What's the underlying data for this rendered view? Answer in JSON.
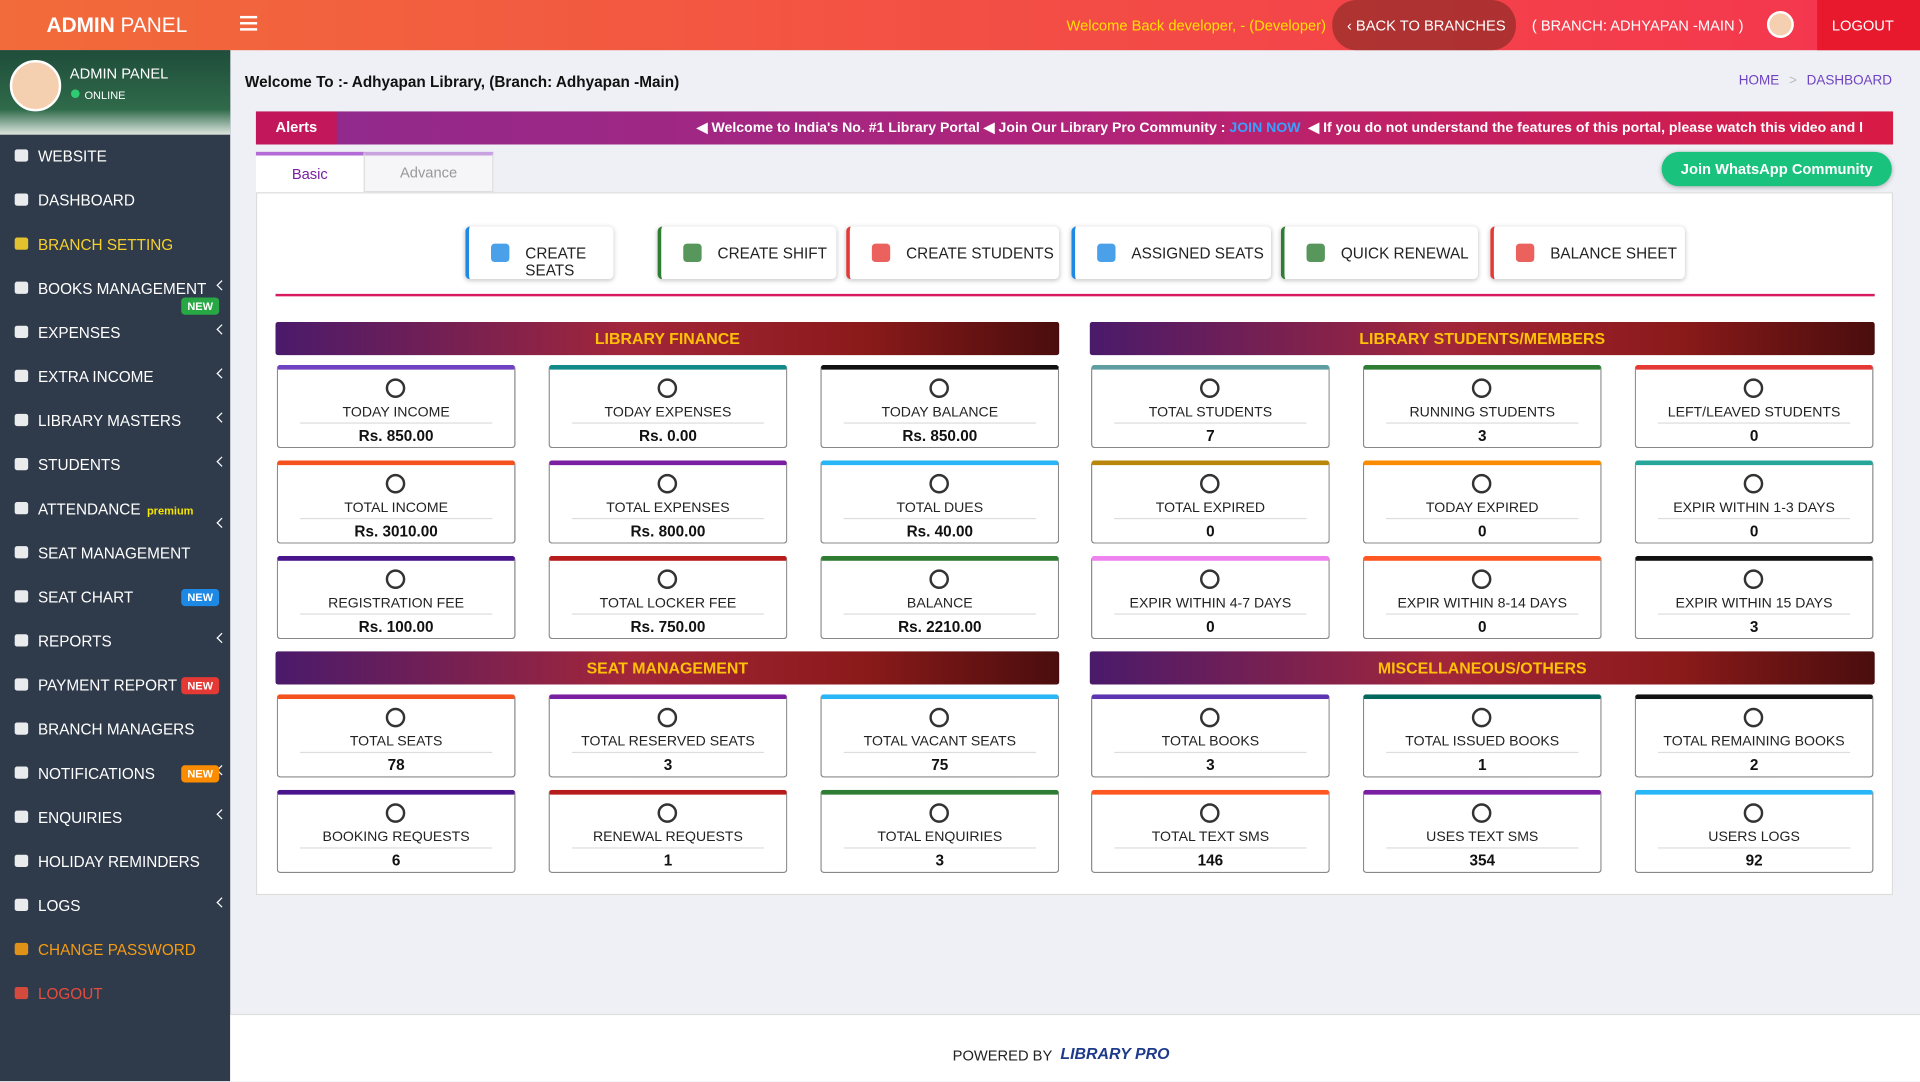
{
  "header": {
    "brand_bold": "ADMIN",
    "brand_light": "PANEL",
    "welcome": "Welcome Back developer, - (Developer)",
    "back": "BACK TO BRANCHES",
    "branch": "( BRANCH: ADHYAPAN -MAIN )",
    "logout": "LOGOUT"
  },
  "sidebar": {
    "user": "ADMIN PANEL",
    "status": "ONLINE",
    "menu": [
      {
        "label": "WEBSITE"
      },
      {
        "label": "DASHBOARD"
      },
      {
        "label": "BRANCH SETTING",
        "color": "#f7d02c"
      },
      {
        "label": "BOOKS MANAGEMENT",
        "arrow": true,
        "badge": "NEW",
        "badge_color": "#28a745",
        "badge_below": true
      },
      {
        "label": "EXPENSES",
        "arrow": true
      },
      {
        "label": "EXTRA INCOME",
        "arrow": true
      },
      {
        "label": "LIBRARY MASTERS",
        "arrow": true
      },
      {
        "label": "STUDENTS",
        "arrow": true
      },
      {
        "label": "ATTENDANCE",
        "arrow": true,
        "badge": "premium",
        "badge_color": "none"
      },
      {
        "label": "SEAT MANAGEMENT"
      },
      {
        "label": "SEAT CHART",
        "badge": "NEW",
        "badge_color": "#1e88e5"
      },
      {
        "label": "REPORTS",
        "arrow": true
      },
      {
        "label": "PAYMENT REPORT",
        "badge": "NEW",
        "badge_color": "#e53935"
      },
      {
        "label": "BRANCH MANAGERS"
      },
      {
        "label": "NOTIFICATIONS",
        "arrow": true,
        "badge": "NEW",
        "badge_color": "#fb8c00"
      },
      {
        "label": "ENQUIRIES",
        "arrow": true
      },
      {
        "label": "HOLIDAY REMINDERS"
      },
      {
        "label": "LOGS",
        "arrow": true
      },
      {
        "label": "CHANGE PASSWORD",
        "color": "#f39c12"
      },
      {
        "label": "LOGOUT",
        "color": "#e74c3c"
      }
    ]
  },
  "page": {
    "welcome": "Welcome To :- Adhyapan Library, (Branch: Adhyapan -Main)",
    "breadcrumb": [
      "HOME",
      "DASHBOARD"
    ]
  },
  "alerts": {
    "label": "Alerts",
    "items": [
      "Welcome to India's No. #1 Library Portal",
      "Join Our Library Pro Community :",
      "If you do not understand the features of this portal, please watch this video and l"
    ],
    "link": "JOIN NOW"
  },
  "tabs": [
    "Basic",
    "Advance"
  ],
  "whatsapp": "Join WhatsApp Community",
  "buttons": [
    {
      "label": "CREATE SEATS",
      "color": "#1e88e5"
    },
    {
      "label": "CREATE SHIFT",
      "color": "#2e7d32"
    },
    {
      "label": "CREATE STUDENTS",
      "color": "#e53935"
    },
    {
      "label": "ASSIGNED SEATS",
      "color": "#1e88e5"
    },
    {
      "label": "QUICK RENEWAL",
      "color": "#2e7d32"
    },
    {
      "label": "BALANCE SHEET",
      "color": "#e53935"
    }
  ],
  "sections": [
    {
      "title": "LIBRARY FINANCE",
      "cards": [
        {
          "label": "TODAY INCOME",
          "value": "Rs. 850.00",
          "color": "#6f42c1"
        },
        {
          "label": "TODAY EXPENSES",
          "value": "Rs. 0.00",
          "color": "#138a8a"
        },
        {
          "label": "TODAY BALANCE",
          "value": "Rs. 850.00",
          "color": "#111111"
        },
        {
          "label": "TOTAL INCOME",
          "value": "Rs. 3010.00",
          "color": "#f4511e"
        },
        {
          "label": "TOTAL EXPENSES",
          "value": "Rs. 800.00",
          "color": "#7b1fa2"
        },
        {
          "label": "TOTAL DUES",
          "value": "Rs. 40.00",
          "color": "#29b6f6"
        },
        {
          "label": "REGISTRATION FEE",
          "value": "Rs. 100.00",
          "color": "#4a148c"
        },
        {
          "label": "TOTAL LOCKER FEE",
          "value": "Rs. 750.00",
          "color": "#b71c1c"
        },
        {
          "label": "BALANCE",
          "value": "Rs. 2210.00",
          "color": "#2e7d32"
        }
      ]
    },
    {
      "title": "LIBRARY STUDENTS/MEMBERS",
      "cards": [
        {
          "label": "TOTAL STUDENTS",
          "value": "7",
          "color": "#5f9ea0"
        },
        {
          "label": "RUNNING STUDENTS",
          "value": "3",
          "color": "#2e7d32"
        },
        {
          "label": "LEFT/LEAVED STUDENTS",
          "value": "0",
          "color": "#e53935"
        },
        {
          "label": "TOTAL EXPIRED",
          "value": "0",
          "color": "#b8860b"
        },
        {
          "label": "TODAY EXPIRED",
          "value": "0",
          "color": "#fb8c00"
        },
        {
          "label": "EXPIR WITHIN 1-3 DAYS",
          "value": "0",
          "color": "#26a69a"
        },
        {
          "label": "EXPIR WITHIN 4-7 DAYS",
          "value": "0",
          "color": "#ee82ee"
        },
        {
          "label": "EXPIR WITHIN 8-14 DAYS",
          "value": "0",
          "color": "#ff5722"
        },
        {
          "label": "EXPIR WITHIN 15 DAYS",
          "value": "3",
          "color": "#111111"
        }
      ]
    },
    {
      "title": "SEAT MANAGEMENT",
      "cards": [
        {
          "label": "TOTAL SEATS",
          "value": "78",
          "color": "#f4511e"
        },
        {
          "label": "TOTAL RESERVED SEATS",
          "value": "3",
          "color": "#7b1fa2"
        },
        {
          "label": "TOTAL VACANT SEATS",
          "value": "75",
          "color": "#29b6f6"
        },
        {
          "label": "BOOKING REQUESTS",
          "value": "6",
          "color": "#4a148c"
        },
        {
          "label": "RENEWAL REQUESTS",
          "value": "1",
          "color": "#b71c1c"
        },
        {
          "label": "TOTAL ENQUIRIES",
          "value": "3",
          "color": "#2e7d32"
        }
      ]
    },
    {
      "title": "MISCELLANEOUS/OTHERS",
      "cards": [
        {
          "label": "TOTAL BOOKS",
          "value": "3",
          "color": "#5e35b1"
        },
        {
          "label": "TOTAL ISSUED BOOKS",
          "value": "1",
          "color": "#00695c"
        },
        {
          "label": "TOTAL REMAINING BOOKS",
          "value": "2",
          "color": "#111111"
        },
        {
          "label": "TOTAL TEXT SMS",
          "value": "146",
          "color": "#ff5722"
        },
        {
          "label": "USES TEXT SMS",
          "value": "354",
          "color": "#7b1fa2"
        },
        {
          "label": "USERS LOGS",
          "value": "92",
          "color": "#29b6f6"
        }
      ]
    }
  ],
  "footer": {
    "powered": "POWERED BY",
    "logo": "LIBRARY PRO"
  }
}
